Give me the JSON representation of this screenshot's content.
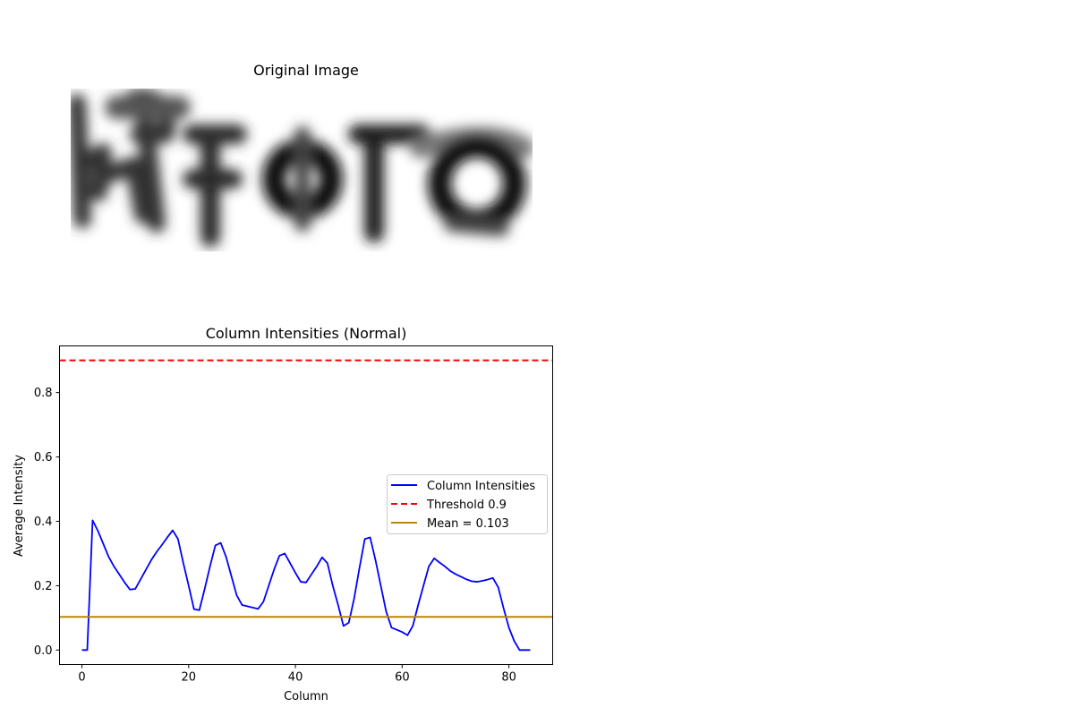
{
  "image_panel": {
    "title": "Original Image",
    "colormap": "gray_r"
  },
  "chart_data": {
    "type": "line",
    "title": "Column Intensities (Normal)",
    "xlabel": "Column",
    "ylabel": "Average Intensity",
    "xlim": [
      -4.2,
      88.2
    ],
    "ylim": [
      -0.045,
      0.945
    ],
    "xticks": [
      0,
      20,
      40,
      60,
      80
    ],
    "xtick_labels": [
      "0",
      "20",
      "40",
      "60",
      "80"
    ],
    "yticks": [
      0.0,
      0.2,
      0.4,
      0.6,
      0.8
    ],
    "ytick_labels": [
      "0.0",
      "0.2",
      "0.4",
      "0.6",
      "0.8"
    ],
    "grid": false,
    "legend_position": "center-right",
    "series": [
      {
        "name": "Column Intensities",
        "color": "#0000ff",
        "style": "solid",
        "x": [
          0,
          1,
          2,
          3,
          4,
          5,
          6,
          7,
          8,
          9,
          10,
          11,
          12,
          13,
          14,
          15,
          16,
          17,
          18,
          19,
          20,
          21,
          22,
          23,
          24,
          25,
          26,
          27,
          28,
          29,
          30,
          31,
          32,
          33,
          34,
          35,
          36,
          37,
          38,
          39,
          40,
          41,
          42,
          43,
          44,
          45,
          46,
          47,
          48,
          49,
          50,
          51,
          52,
          53,
          54,
          55,
          56,
          57,
          58,
          59,
          60,
          61,
          62,
          63,
          64,
          65,
          66,
          67,
          68,
          69,
          70,
          71,
          72,
          73,
          74,
          75,
          76,
          77,
          78,
          79,
          80,
          81,
          82,
          83,
          84
        ],
        "y": [
          0.0,
          0.0,
          0.403,
          0.37,
          0.33,
          0.29,
          0.26,
          0.235,
          0.21,
          0.188,
          0.19,
          0.22,
          0.25,
          0.28,
          0.305,
          0.327,
          0.35,
          0.372,
          0.345,
          0.27,
          0.2,
          0.127,
          0.124,
          0.19,
          0.26,
          0.325,
          0.333,
          0.29,
          0.23,
          0.17,
          0.14,
          0.136,
          0.132,
          0.128,
          0.15,
          0.2,
          0.25,
          0.293,
          0.3,
          0.27,
          0.24,
          0.212,
          0.21,
          0.235,
          0.26,
          0.288,
          0.27,
          0.2,
          0.14,
          0.075,
          0.085,
          0.16,
          0.255,
          0.345,
          0.35,
          0.28,
          0.2,
          0.12,
          0.07,
          0.063,
          0.056,
          0.046,
          0.075,
          0.14,
          0.2,
          0.26,
          0.285,
          0.272,
          0.26,
          0.246,
          0.236,
          0.228,
          0.22,
          0.214,
          0.212,
          0.215,
          0.219,
          0.224,
          0.195,
          0.13,
          0.07,
          0.028,
          0.0,
          0.0,
          0.0
        ]
      },
      {
        "name": "Threshold 0.9",
        "color": "#ff0000",
        "style": "dashed",
        "hline": 0.9
      },
      {
        "name": "Mean = 0.103",
        "color": "#b8860b",
        "style": "solid",
        "hline": 0.103
      }
    ]
  }
}
